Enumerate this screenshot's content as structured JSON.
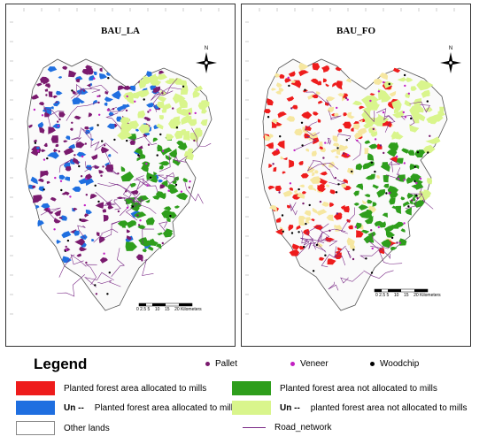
{
  "maps": [
    {
      "title": "BAU_LA",
      "scheme": {
        "allocated": "#7a1a6e",
        "unallocated": "#1f6fe0"
      }
    },
    {
      "title": "BAU_FO",
      "scheme": {
        "allocated": "#ee1c1c",
        "unallocated": "#f6e7a0"
      }
    }
  ],
  "north_label": "N",
  "scale": {
    "ticks": [
      "0",
      "2.5",
      "5",
      "10",
      "15",
      "20"
    ],
    "unit": "Kilometers"
  },
  "legend": {
    "title": "Legend",
    "mills": [
      {
        "label": "Pallet",
        "color": "#7a1a6e"
      },
      {
        "label": "Veneer",
        "color": "#c21fc2"
      },
      {
        "label": "Woodchip",
        "color": "#000000"
      }
    ],
    "items": [
      {
        "label": "Planted forest area allocated to mills",
        "prefix": "",
        "color": "#ee1c1c"
      },
      {
        "label": "Planted forest area allocated to mills",
        "prefix": "Un --",
        "color": "#1f6fe0"
      },
      {
        "label": "Other lands",
        "prefix": "",
        "color": "#ffffff"
      },
      {
        "label": "Planted forest area not allocated to mills",
        "prefix": "",
        "color": "#2e9e1c"
      },
      {
        "label": "planted forest area not allocated to mills",
        "prefix": "Un --",
        "color": "#d9f58c"
      },
      {
        "label": "Road_network",
        "prefix": "",
        "color": "#7a2a86"
      }
    ]
  }
}
